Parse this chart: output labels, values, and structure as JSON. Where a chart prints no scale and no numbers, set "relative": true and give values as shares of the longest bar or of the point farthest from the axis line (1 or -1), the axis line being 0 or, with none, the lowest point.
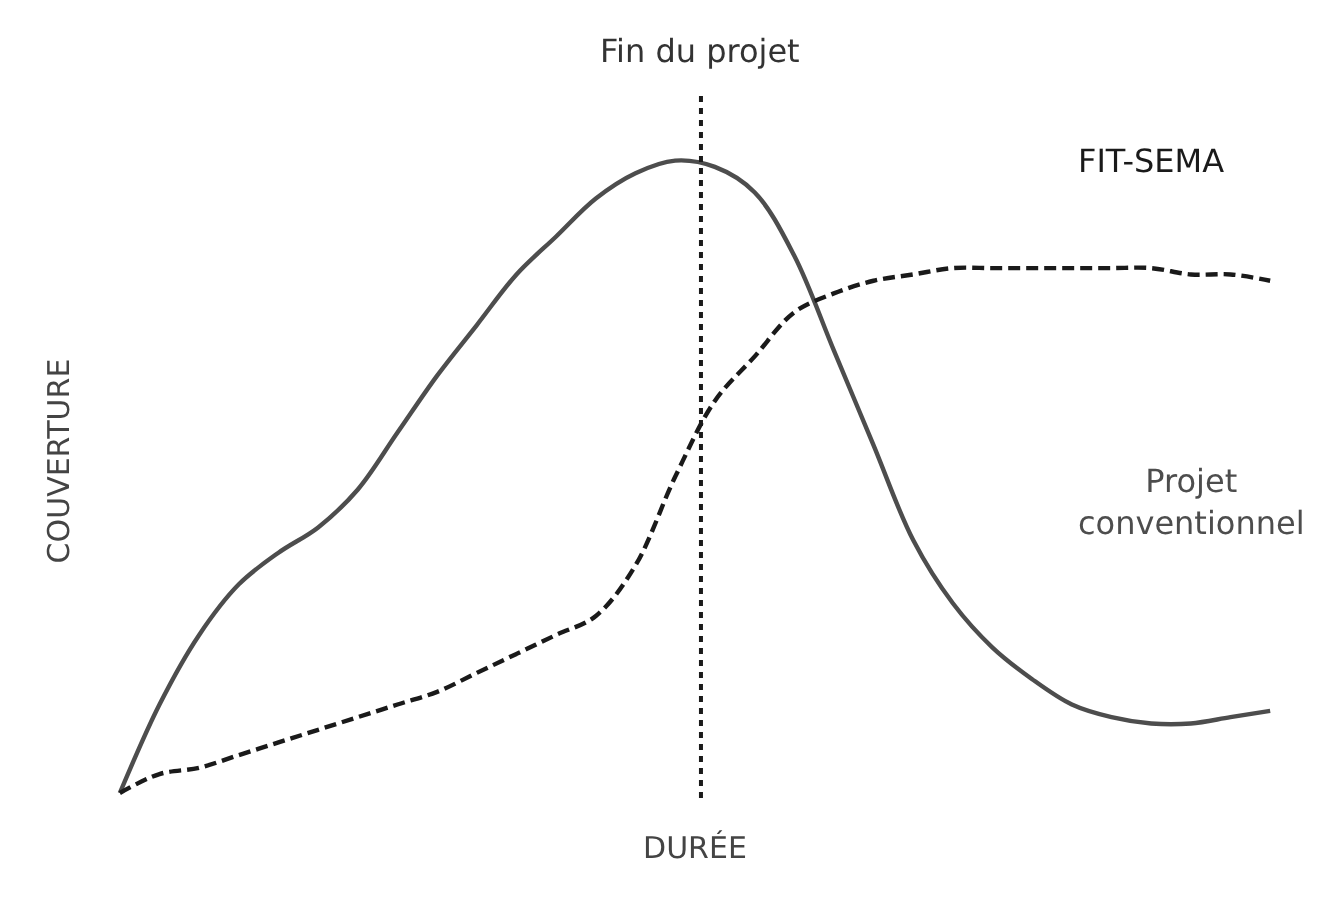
{
  "chart_data": {
    "type": "line",
    "relative": true,
    "xlabel": "DURÉE",
    "ylabel": "COUVERTURE",
    "categories": [
      null,
      null,
      null,
      null,
      null,
      null,
      null,
      null,
      null,
      null,
      null,
      null,
      null,
      null,
      null,
      null,
      null,
      null,
      null,
      null,
      null,
      null,
      null,
      null,
      null,
      null,
      null,
      null,
      null,
      null
    ],
    "series": [
      {
        "name": "Projet conventionnel",
        "color": "#4d4d4d",
        "line_style": "solid",
        "values": [
          0,
          0.14,
          0.25,
          0.33,
          0.38,
          0.42,
          0.48,
          0.57,
          0.66,
          0.74,
          0.82,
          0.88,
          0.94,
          0.98,
          1.0,
          0.99,
          0.95,
          0.85,
          0.7,
          0.55,
          0.4,
          0.3,
          0.23,
          0.18,
          0.14,
          0.12,
          0.11,
          0.11,
          0.12,
          0.13
        ]
      },
      {
        "name": "FIT-SEMA",
        "color": "#1a1a1a",
        "line_style": "dashed",
        "values": [
          0,
          0.03,
          0.04,
          0.06,
          0.08,
          0.1,
          0.12,
          0.14,
          0.16,
          0.19,
          0.22,
          0.25,
          0.28,
          0.36,
          0.5,
          0.62,
          0.69,
          0.76,
          0.79,
          0.81,
          0.82,
          0.83,
          0.83,
          0.83,
          0.83,
          0.83,
          0.83,
          0.82,
          0.82,
          0.81
        ]
      }
    ],
    "annotations": [
      "Fin du projet"
    ],
    "legend": false,
    "marker": "none",
    "tick_labels": false
  }
}
